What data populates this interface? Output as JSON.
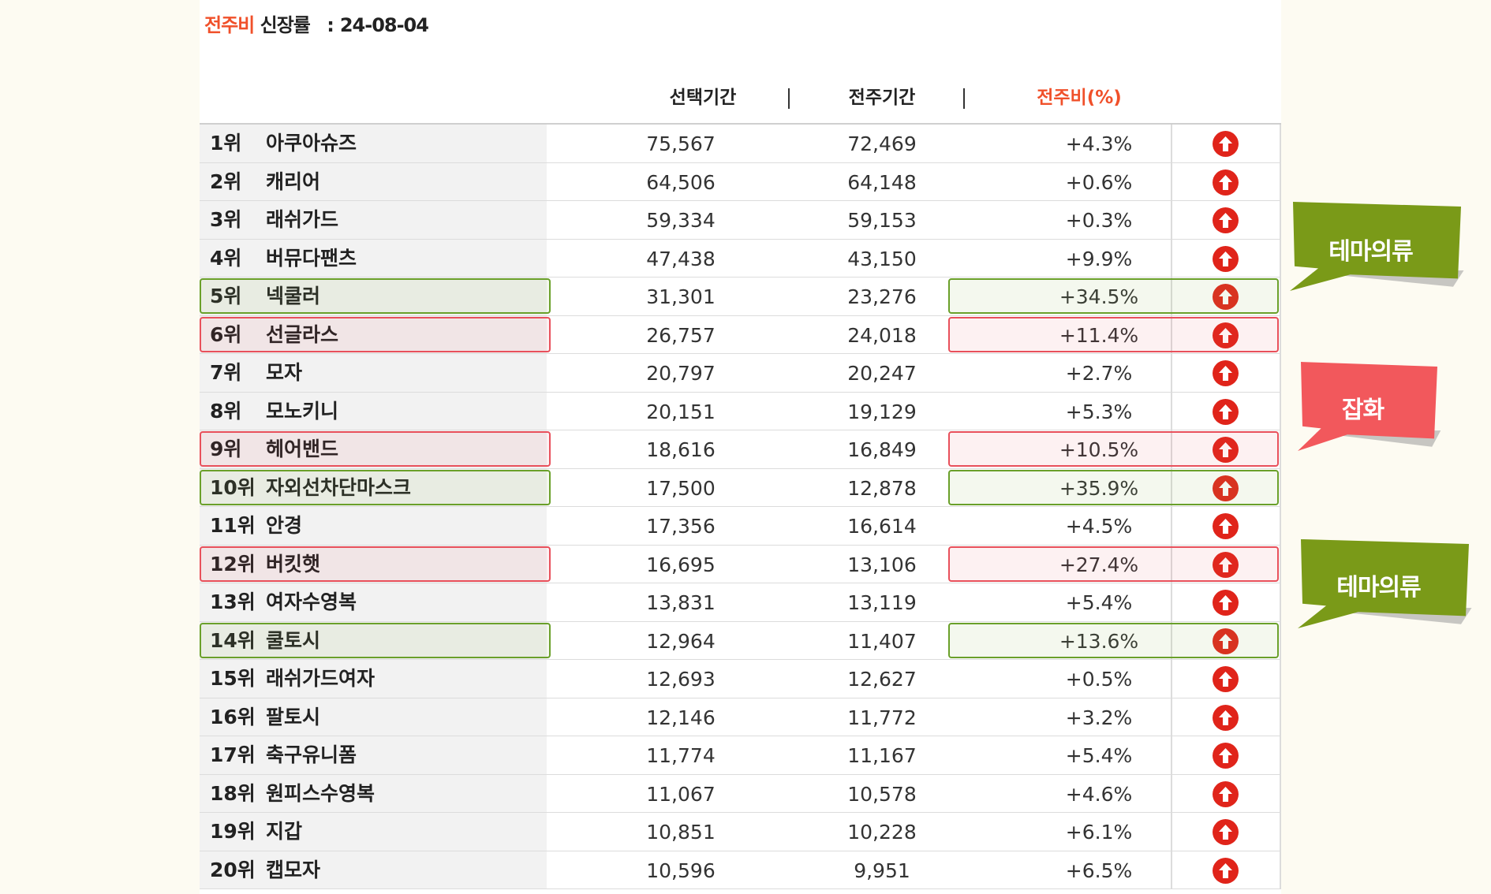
{
  "title": {
    "prefix": "전주비",
    "text": "신장률",
    "colon": ":",
    "date": "24-08-04"
  },
  "headers": {
    "selected": "선택기간",
    "previous": "전주기간",
    "ratio": "전주비(%)",
    "separator": "|"
  },
  "colors": {
    "accent": "#f0502a",
    "up_icon": "#e0241a",
    "green": "#6aa02a",
    "red": "#e8505b",
    "callout_green": "#7a9a18",
    "callout_red": "#f2585c"
  },
  "rows": [
    {
      "rank": "1위",
      "name": "아쿠아슈즈",
      "sel": "75,567",
      "prev": "72,469",
      "pct": "+4.3%",
      "icon": "up-arrow-icon"
    },
    {
      "rank": "2위",
      "name": "캐리어",
      "sel": "64,506",
      "prev": "64,148",
      "pct": "+0.6%",
      "icon": "up-arrow-icon"
    },
    {
      "rank": "3위",
      "name": "래쉬가드",
      "sel": "59,334",
      "prev": "59,153",
      "pct": "+0.3%",
      "icon": "up-arrow-icon"
    },
    {
      "rank": "4위",
      "name": "버뮤다팬츠",
      "sel": "47,438",
      "prev": "43,150",
      "pct": "+9.9%",
      "icon": "up-arrow-icon"
    },
    {
      "rank": "5위",
      "name": "넥쿨러",
      "sel": "31,301",
      "prev": "23,276",
      "pct": "+34.5%",
      "icon": "up-arrow-icon",
      "highlight": "green"
    },
    {
      "rank": "6위",
      "name": "선글라스",
      "sel": "26,757",
      "prev": "24,018",
      "pct": "+11.4%",
      "icon": "up-arrow-icon",
      "highlight": "red"
    },
    {
      "rank": "7위",
      "name": "모자",
      "sel": "20,797",
      "prev": "20,247",
      "pct": "+2.7%",
      "icon": "up-arrow-icon"
    },
    {
      "rank": "8위",
      "name": "모노키니",
      "sel": "20,151",
      "prev": "19,129",
      "pct": "+5.3%",
      "icon": "up-arrow-icon"
    },
    {
      "rank": "9위",
      "name": "헤어밴드",
      "sel": "18,616",
      "prev": "16,849",
      "pct": "+10.5%",
      "icon": "up-arrow-icon",
      "highlight": "red"
    },
    {
      "rank": "10위",
      "name": "자외선차단마스크",
      "sel": "17,500",
      "prev": "12,878",
      "pct": "+35.9%",
      "icon": "up-arrow-icon",
      "highlight": "green"
    },
    {
      "rank": "11위",
      "name": "안경",
      "sel": "17,356",
      "prev": "16,614",
      "pct": "+4.5%",
      "icon": "up-arrow-icon"
    },
    {
      "rank": "12위",
      "name": "버킷햇",
      "sel": "16,695",
      "prev": "13,106",
      "pct": "+27.4%",
      "icon": "up-arrow-icon",
      "highlight": "red"
    },
    {
      "rank": "13위",
      "name": "여자수영복",
      "sel": "13,831",
      "prev": "13,119",
      "pct": "+5.4%",
      "icon": "up-arrow-icon"
    },
    {
      "rank": "14위",
      "name": "쿨토시",
      "sel": "12,964",
      "prev": "11,407",
      "pct": "+13.6%",
      "icon": "up-arrow-icon",
      "highlight": "green"
    },
    {
      "rank": "15위",
      "name": "래쉬가드여자",
      "sel": "12,693",
      "prev": "12,627",
      "pct": "+0.5%",
      "icon": "up-arrow-icon"
    },
    {
      "rank": "16위",
      "name": "팔토시",
      "sel": "12,146",
      "prev": "11,772",
      "pct": "+3.2%",
      "icon": "up-arrow-icon"
    },
    {
      "rank": "17위",
      "name": "축구유니폼",
      "sel": "11,774",
      "prev": "11,167",
      "pct": "+5.4%",
      "icon": "up-arrow-icon"
    },
    {
      "rank": "18위",
      "name": "원피스수영복",
      "sel": "11,067",
      "prev": "10,578",
      "pct": "+4.6%",
      "icon": "up-arrow-icon"
    },
    {
      "rank": "19위",
      "name": "지갑",
      "sel": "10,851",
      "prev": "10,228",
      "pct": "+6.1%",
      "icon": "up-arrow-icon"
    },
    {
      "rank": "20위",
      "name": "캡모자",
      "sel": "10,596",
      "prev": "9,951",
      "pct": "+6.5%",
      "icon": "up-arrow-icon"
    }
  ],
  "callouts": [
    {
      "label": "테마의류",
      "color": "green"
    },
    {
      "label": "잡화",
      "color": "red"
    },
    {
      "label": "테마의류",
      "color": "green"
    }
  ]
}
